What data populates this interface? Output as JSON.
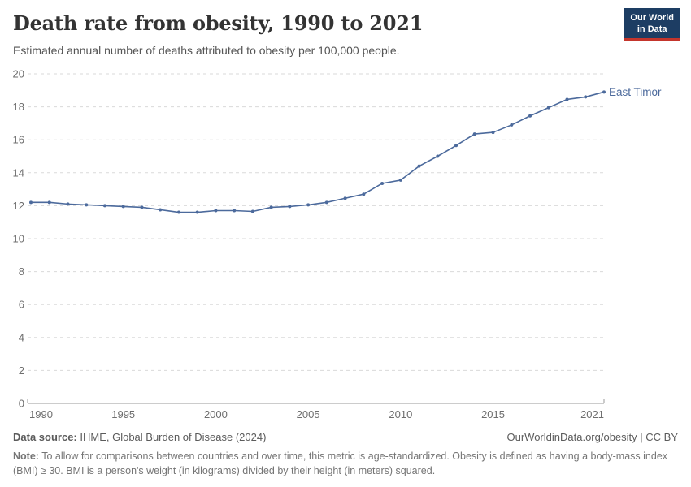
{
  "header": {
    "title": "Death rate from obesity, 1990 to 2021",
    "subtitle": "Estimated annual number of deaths attributed to obesity per 100,000 people.",
    "logo": {
      "line1": "Our World",
      "line2": "in Data",
      "bg_color": "#1d3d63",
      "accent_color": "#c4352c"
    }
  },
  "chart_data": {
    "type": "line",
    "title": "Death rate from obesity, 1990 to 2021",
    "xlabel": "",
    "ylabel": "",
    "x": [
      1990,
      1991,
      1992,
      1993,
      1994,
      1995,
      1996,
      1997,
      1998,
      1999,
      2000,
      2001,
      2002,
      2003,
      2004,
      2005,
      2006,
      2007,
      2008,
      2009,
      2010,
      2011,
      2012,
      2013,
      2014,
      2015,
      2016,
      2017,
      2018,
      2019,
      2020,
      2021
    ],
    "series": [
      {
        "name": "East Timor",
        "color": "#4C6A9C",
        "values": [
          12.2,
          12.2,
          12.1,
          12.05,
          12.0,
          11.95,
          11.9,
          11.75,
          11.6,
          11.6,
          11.7,
          11.7,
          11.65,
          11.9,
          11.95,
          12.05,
          12.2,
          12.45,
          12.7,
          13.35,
          13.55,
          14.4,
          15.0,
          15.65,
          16.35,
          16.45,
          16.9,
          17.45,
          17.95,
          18.45,
          18.6,
          18.9
        ]
      }
    ],
    "ylim": [
      0,
      20
    ],
    "yticks": [
      0,
      2,
      4,
      6,
      8,
      10,
      12,
      14,
      16,
      18,
      20
    ],
    "xticks": [
      1990,
      1995,
      2000,
      2005,
      2010,
      2015,
      2021
    ],
    "grid": "horizontal-dashed",
    "grid_color": "#dadada",
    "tick_color": "#6e6e6e",
    "axis_color": "#999999",
    "legend_position": "end-of-line"
  },
  "footer": {
    "source_label": "Data source:",
    "source_text": " IHME, Global Burden of Disease (2024)",
    "rights": "OurWorldinData.org/obesity | CC BY",
    "note_label": "Note:",
    "note_text": " To allow for comparisons between countries and over time, this metric is age-standardized. Obesity is defined as having a body-mass index (BMI) ≥ 30. BMI is a person's weight (in kilograms) divided by their height (in meters) squared."
  }
}
